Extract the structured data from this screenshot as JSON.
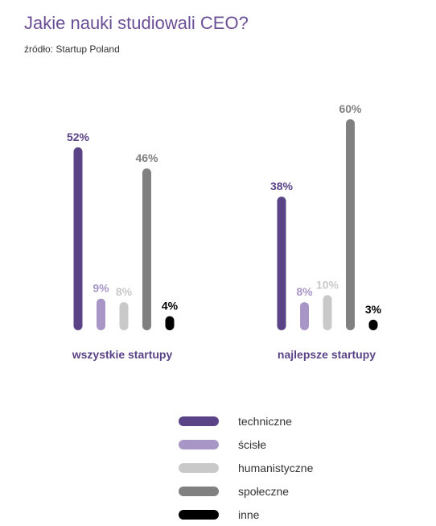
{
  "header": {
    "title": "Jakie nauki studiowali CEO?",
    "source": "źródło: Startup Poland"
  },
  "chart_data": {
    "type": "bar",
    "categories": [
      "wszystkie startupy",
      "najlepsze startupy"
    ],
    "series": [
      {
        "name": "techniczne",
        "values": [
          52,
          38
        ],
        "color": "#5b4387"
      },
      {
        "name": "ścisłe",
        "values": [
          9,
          8
        ],
        "color": "#a896c6"
      },
      {
        "name": "humanistyczne",
        "values": [
          8,
          10
        ],
        "color": "#c9c9c9"
      },
      {
        "name": "społeczne",
        "values": [
          46,
          60
        ],
        "color": "#808080"
      },
      {
        "name": "inne",
        "values": [
          4,
          3
        ],
        "color": "#000000"
      }
    ],
    "value_labels": [
      [
        "52%",
        "9%",
        "8%",
        "46%",
        "4%"
      ],
      [
        "38%",
        "8%",
        "10%",
        "60%",
        "3%"
      ]
    ],
    "unit": "%",
    "title": "Jakie nauki studiowali CEO?",
    "subtitle": "źródło: Startup Poland",
    "legend_position": "bottom",
    "grid": false,
    "category_label_color": "#5b4387",
    "ylim": [
      0,
      60
    ]
  }
}
